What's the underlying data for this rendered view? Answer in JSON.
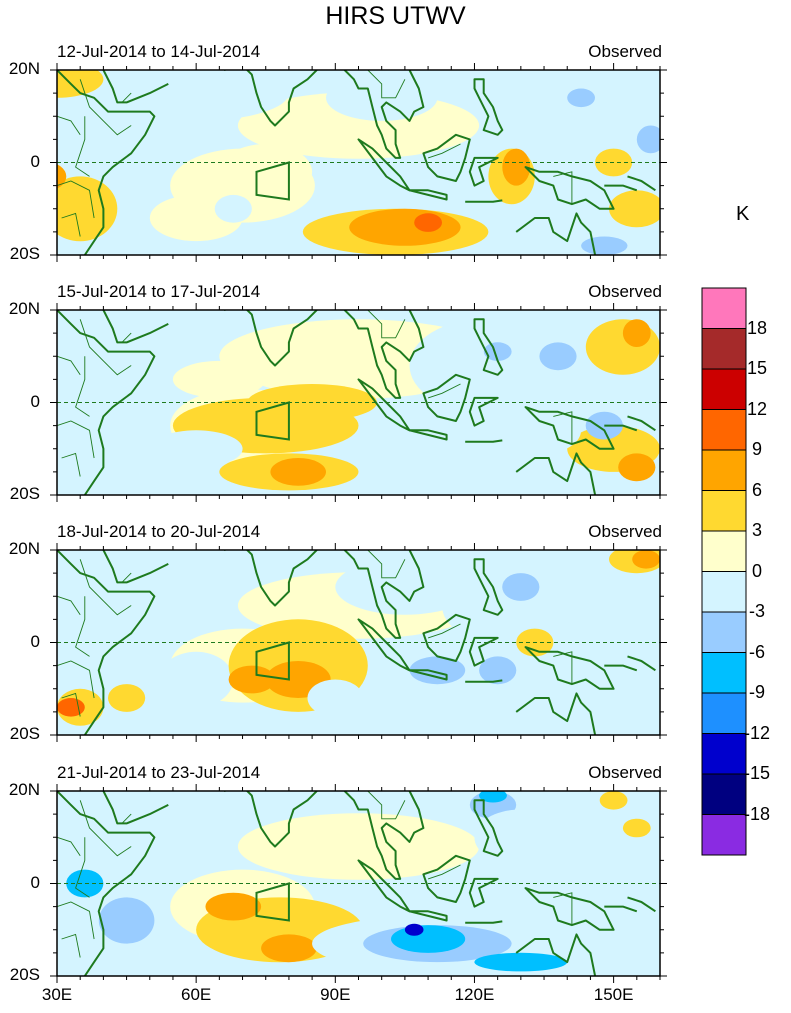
{
  "title": "HIRS UTWV",
  "unit": "K",
  "panels": [
    {
      "date_range": "12-Jul-2014 to 14-Jul-2014",
      "label": "Observed"
    },
    {
      "date_range": "15-Jul-2014 to 17-Jul-2014",
      "label": "Observed"
    },
    {
      "date_range": "18-Jul-2014 to 20-Jul-2014",
      "label": "Observed"
    },
    {
      "date_range": "21-Jul-2014 to 23-Jul-2014",
      "label": "Observed"
    }
  ],
  "lat_labels": [
    "20N",
    "0",
    "20S"
  ],
  "lon_labels": [
    "30E",
    "60E",
    "90E",
    "120E",
    "150E"
  ],
  "colorbar": {
    "labels": [
      "18",
      "15",
      "12",
      "9",
      "6",
      "3",
      "0",
      "-3",
      "-6",
      "-9",
      "-12",
      "-15",
      "-18"
    ],
    "colors": [
      "#ff77bb",
      "#a52a2a",
      "#cc0000",
      "#ff6600",
      "#ffa500",
      "#ffd930",
      "#ffffcc",
      "#d4f4ff",
      "#99ccff",
      "#00bfff",
      "#1e90ff",
      "#0000cd",
      "#000080",
      "#8a2be2"
    ]
  },
  "colors": {
    "land_outline": "#1e7a1e",
    "equator_line": "#1e7a1e"
  }
}
